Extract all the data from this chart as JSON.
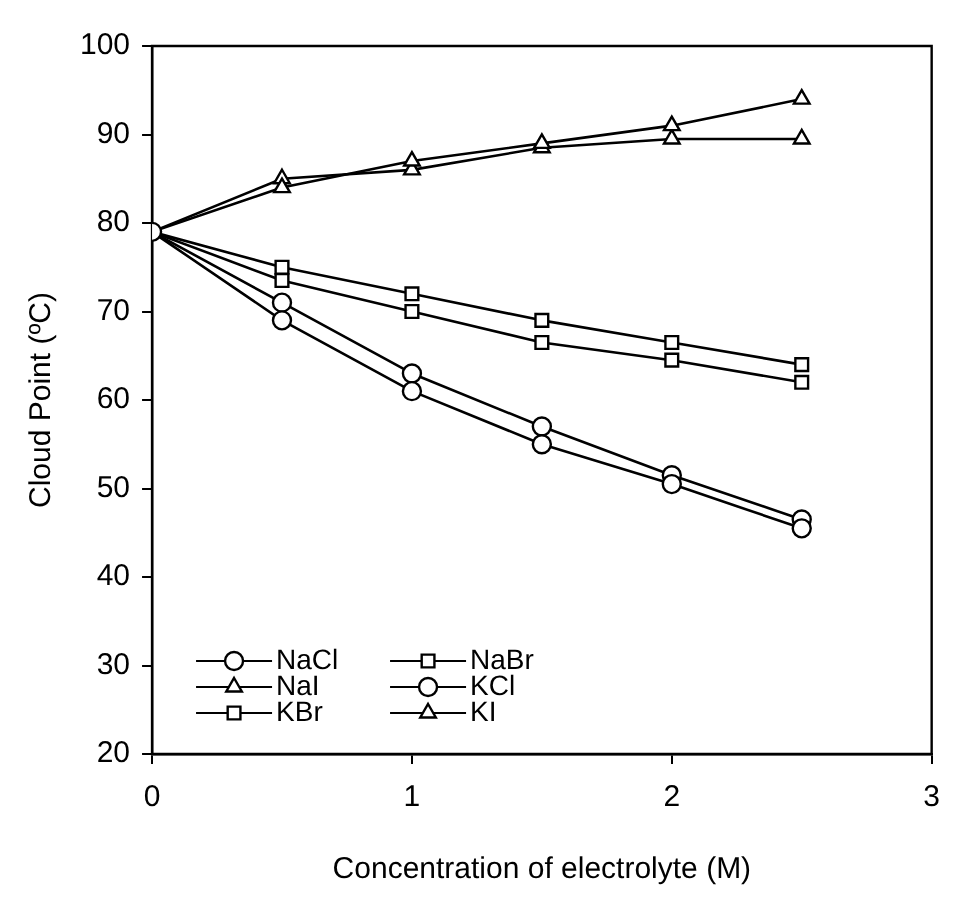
{
  "chart_data": {
    "type": "line",
    "xlabel": "Concentration of electrolyte (M)",
    "ylabel": "Cloud Point (ºC)",
    "x": [
      0,
      0.5,
      1,
      1.5,
      2,
      2.5
    ],
    "xlim": [
      0,
      3
    ],
    "xticks": [
      0,
      1,
      2,
      3
    ],
    "ylim": [
      20,
      100
    ],
    "yticks": [
      20,
      30,
      40,
      50,
      60,
      70,
      80,
      90,
      100
    ],
    "grid": false,
    "legend": "bottom left",
    "line_style": "solid",
    "series": [
      {
        "name": "NaCl",
        "color": "#000000",
        "marker": "circle",
        "values": [
          79,
          69,
          61,
          55,
          50.5,
          45.5
        ]
      },
      {
        "name": "NaBr",
        "color": "#000000",
        "marker": "square",
        "values": [
          79,
          73.5,
          70,
          66.5,
          64.5,
          62
        ]
      },
      {
        "name": "NaI",
        "color": "#000000",
        "marker": "triangle",
        "values": [
          79,
          84,
          87,
          89,
          91,
          94
        ]
      },
      {
        "name": "KCl",
        "color": "#000000",
        "marker": "circle",
        "values": [
          79,
          71,
          63,
          57,
          51.5,
          46.5
        ]
      },
      {
        "name": "KBr",
        "color": "#000000",
        "marker": "square",
        "values": [
          79,
          75,
          72,
          69,
          66.5,
          64
        ]
      },
      {
        "name": "KI",
        "color": "#000000",
        "marker": "triangle",
        "values": [
          79,
          85,
          86,
          88.5,
          89.5,
          89.5
        ]
      }
    ]
  }
}
